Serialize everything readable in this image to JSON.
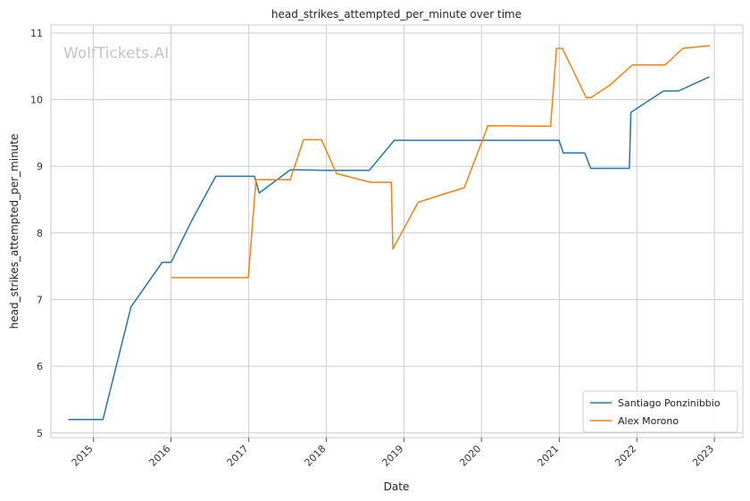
{
  "chart_data": {
    "type": "line",
    "title": "head_strikes_attempted_per_minute over time",
    "xlabel": "Date",
    "ylabel": "head_strikes_attempted_per_minute",
    "watermark": "WolfTickets.AI",
    "x_ticks": [
      "2015",
      "2016",
      "2017",
      "2018",
      "2019",
      "2020",
      "2021",
      "2022",
      "2023"
    ],
    "y_ticks": [
      "5",
      "6",
      "7",
      "8",
      "9",
      "10",
      "11"
    ],
    "xlim": [
      "2014-06-15",
      "2023-05-15"
    ],
    "ylim": [
      4.93,
      11.12
    ],
    "grid": true,
    "legend_position": "lower right",
    "series": [
      {
        "name": "Santiago Ponzinibbio",
        "color": "#1f77b4",
        "points": [
          [
            "2014-09-05",
            5.2
          ],
          [
            "2015-02-15",
            5.2
          ],
          [
            "2015-06-27",
            6.89
          ],
          [
            "2015-11-21",
            7.56
          ],
          [
            "2016-01-02",
            7.56
          ],
          [
            "2016-04-10",
            8.2
          ],
          [
            "2016-07-30",
            8.85
          ],
          [
            "2017-01-28",
            8.85
          ],
          [
            "2017-02-19",
            8.6
          ],
          [
            "2017-07-16",
            8.95
          ],
          [
            "2017-12-30",
            8.94
          ],
          [
            "2018-07-22",
            8.94
          ],
          [
            "2018-11-17",
            9.39
          ],
          [
            "2020-12-31",
            9.39
          ],
          [
            "2021-01-20",
            9.2
          ],
          [
            "2021-05-01",
            9.2
          ],
          [
            "2021-05-29",
            8.97
          ],
          [
            "2021-11-27",
            8.97
          ],
          [
            "2021-12-04",
            9.81
          ],
          [
            "2022-05-07",
            10.13
          ],
          [
            "2022-07-16",
            10.13
          ],
          [
            "2022-12-07",
            10.34
          ]
        ]
      },
      {
        "name": "Alex Morono",
        "color": "#ff7f0e",
        "points": [
          [
            "2016-01-02",
            7.33
          ],
          [
            "2016-12-30",
            7.33
          ],
          [
            "2017-02-04",
            8.8
          ],
          [
            "2017-07-15",
            8.8
          ],
          [
            "2017-09-16",
            9.4
          ],
          [
            "2017-12-09",
            9.4
          ],
          [
            "2018-02-18",
            8.89
          ],
          [
            "2018-07-29",
            8.76
          ],
          [
            "2018-11-03",
            8.76
          ],
          [
            "2018-11-10",
            7.76
          ],
          [
            "2019-03-09",
            8.46
          ],
          [
            "2019-10-12",
            8.68
          ],
          [
            "2020-02-01",
            9.61
          ],
          [
            "2020-11-21",
            9.6
          ],
          [
            "2020-12-19",
            10.77
          ],
          [
            "2021-01-16",
            10.77
          ],
          [
            "2021-05-08",
            10.03
          ],
          [
            "2021-05-29",
            10.03
          ],
          [
            "2021-08-28",
            10.22
          ],
          [
            "2021-12-11",
            10.52
          ],
          [
            "2022-05-14",
            10.52
          ],
          [
            "2022-08-06",
            10.77
          ],
          [
            "2022-12-10",
            10.81
          ]
        ]
      }
    ]
  }
}
